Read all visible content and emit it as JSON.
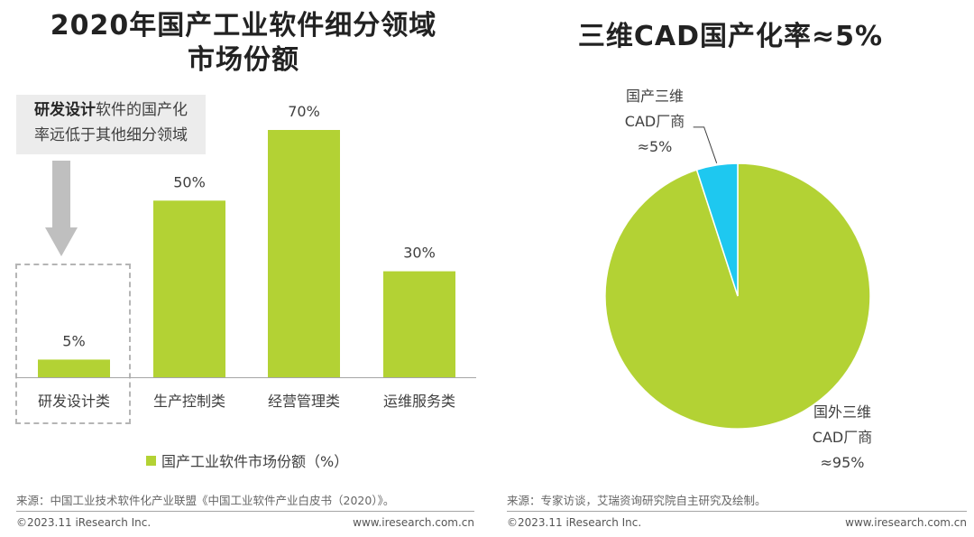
{
  "left": {
    "title_line1": "2020年国产工业软件细分领域",
    "title_line2": "市场份额",
    "callout": {
      "bold": "研发设计",
      "line1_rest": "软件的国产化",
      "line2": "率远低于其他细分领域"
    },
    "legend": "国产工业软件市场份额（%）",
    "source": "来源：中国工业技术软件化产业联盟《中国工业软件产业白皮书（2020）》。",
    "copyright": "©2023.11 iResearch Inc.",
    "url": "www.iresearch.com.cn"
  },
  "right": {
    "title": "三维CAD国产化率≈5%",
    "domestic_label": [
      "国产三维",
      "CAD厂商",
      "≈5%"
    ],
    "foreign_label": [
      "国外三维",
      "CAD厂商",
      "≈95%"
    ],
    "source": "来源：专家访谈，艾瑞资询研究院自主研究及绘制。",
    "copyright": "©2023.11 iResearch Inc.",
    "url": "www.iresearch.com.cn"
  },
  "colors": {
    "bar": "#b3d234",
    "pie_foreign": "#b3d234",
    "pie_domestic": "#1ec8f0",
    "callout_bg": "#ececec",
    "arrow": "#bfbfbf"
  },
  "chart_data": [
    {
      "type": "bar",
      "categories": [
        "研发设计类",
        "生产控制类",
        "经营管理类",
        "运维服务类"
      ],
      "series": [
        {
          "name": "国产工业软件市场份额（%）",
          "values": [
            5,
            50,
            70,
            30
          ]
        }
      ],
      "data_labels": [
        "5%",
        "50%",
        "70%",
        "30%"
      ],
      "ylim": [
        0,
        70
      ]
    },
    {
      "type": "pie",
      "labels": [
        "国产三维CAD厂商",
        "国外三维CAD厂商"
      ],
      "values": [
        5,
        95
      ],
      "data_labels": [
        "≈5%",
        "≈95%"
      ]
    }
  ]
}
